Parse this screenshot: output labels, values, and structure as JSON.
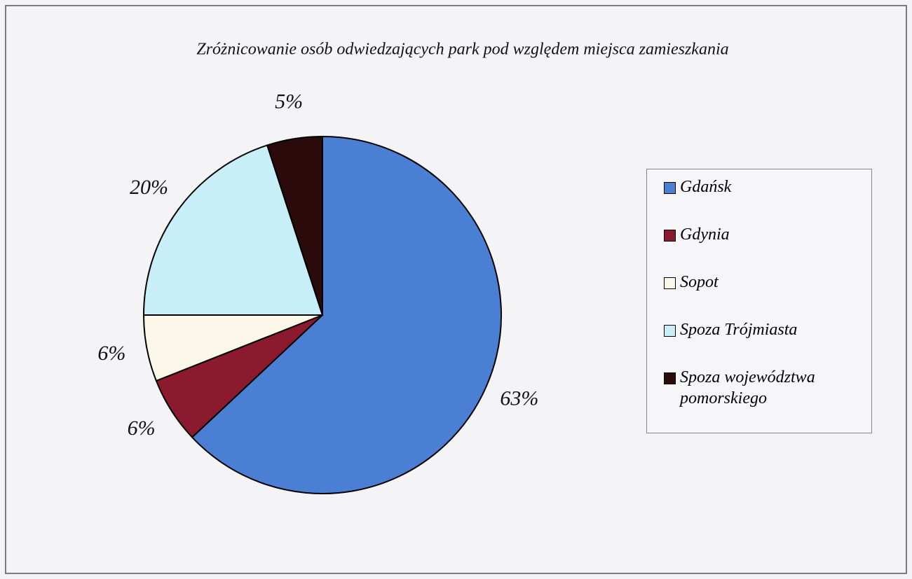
{
  "chart_data": {
    "type": "pie",
    "title": "Zróżnicowanie osób odwiedzających park pod względem miejsca zamieszkania",
    "categories": [
      "Gdańsk",
      "Gdynia",
      "Sopot",
      "Spoza Trójmiasta",
      "Spoza województwa pomorskiego"
    ],
    "values": [
      63,
      6,
      6,
      20,
      5
    ],
    "value_labels": [
      "63%",
      "6%",
      "6%",
      "20%",
      "5%"
    ],
    "colors": [
      "#4a7fd4",
      "#8b1a2e",
      "#fbf8ea",
      "#c8eef8",
      "#2a0a0a"
    ],
    "legend": "right"
  }
}
